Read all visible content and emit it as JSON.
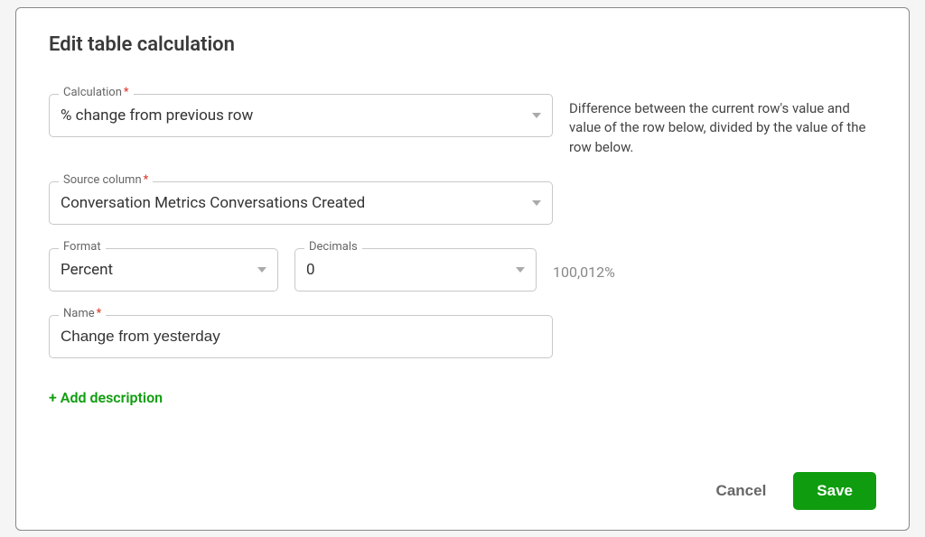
{
  "modal": {
    "title": "Edit table calculation"
  },
  "calculation": {
    "label": "Calculation",
    "required": "*",
    "value": "% change from previous row",
    "help": "Difference between the current row's value and value of the row below, divided by the value of the row below."
  },
  "source": {
    "label": "Source column",
    "required": "*",
    "value": "Conversation Metrics Conversations Created"
  },
  "format": {
    "label": "Format",
    "value": "Percent"
  },
  "decimals": {
    "label": "Decimals",
    "value": "0"
  },
  "preview": "100,012%",
  "name": {
    "label": "Name",
    "required": "*",
    "value": "Change from yesterday"
  },
  "addDescription": "+ Add description",
  "buttons": {
    "cancel": "Cancel",
    "save": "Save"
  }
}
